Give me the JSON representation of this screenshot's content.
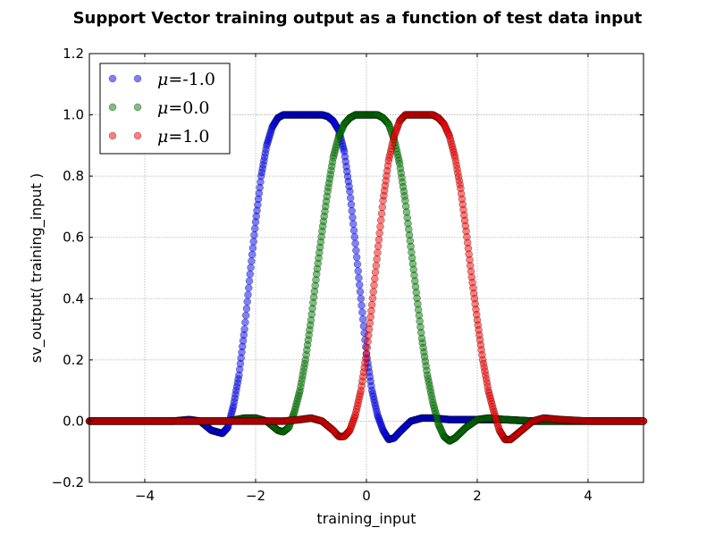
{
  "chart_data": {
    "type": "scatter",
    "title": "Support Vector training output as a function of test data input",
    "xlabel": "training_input",
    "ylabel": "sv_output( training_input )",
    "xlim": [
      -5,
      5
    ],
    "ylim": [
      -0.2,
      1.2
    ],
    "x_ticks": [
      -4,
      -2,
      0,
      2,
      4
    ],
    "x_tick_labels": [
      "−4",
      "−2",
      "0",
      "2",
      "4"
    ],
    "y_ticks": [
      -0.2,
      0.0,
      0.2,
      0.4,
      0.6,
      0.8,
      1.0,
      1.2
    ],
    "y_tick_labels": [
      "−0.2",
      "0.0",
      "0.2",
      "0.4",
      "0.6",
      "0.8",
      "1.0",
      "1.2"
    ],
    "grid": true,
    "legend_position": "top-left",
    "marker": "circle",
    "series": [
      {
        "name": "μ=-1.0",
        "legend_mu": "μ",
        "legend_value": "=-1.0",
        "color": "#0000ff",
        "x": [
          -5.0,
          -4.5,
          -4.0,
          -3.5,
          -3.2,
          -3.0,
          -2.8,
          -2.6,
          -2.5,
          -2.4,
          -2.3,
          -2.2,
          -2.1,
          -2.0,
          -1.9,
          -1.8,
          -1.7,
          -1.6,
          -1.5,
          -1.4,
          -1.3,
          -1.2,
          -1.0,
          -0.8,
          -0.7,
          -0.6,
          -0.5,
          -0.4,
          -0.3,
          -0.2,
          -0.1,
          0.0,
          0.1,
          0.2,
          0.3,
          0.4,
          0.5,
          0.6,
          0.8,
          1.0,
          1.2,
          1.5,
          2.0,
          2.5,
          3.0,
          3.5,
          4.0,
          4.5,
          5.0
        ],
        "y": [
          0.0,
          0.0,
          0.0,
          0.0,
          0.005,
          0.0,
          -0.03,
          -0.04,
          -0.02,
          0.05,
          0.15,
          0.3,
          0.48,
          0.65,
          0.8,
          0.9,
          0.96,
          0.99,
          1.0,
          1.0,
          1.0,
          1.0,
          1.0,
          1.0,
          0.995,
          0.98,
          0.95,
          0.88,
          0.75,
          0.58,
          0.4,
          0.22,
          0.1,
          0.02,
          -0.03,
          -0.06,
          -0.055,
          -0.035,
          0.0,
          0.01,
          0.01,
          0.005,
          0.005,
          0.005,
          0.0,
          0.0,
          0.0,
          0.0,
          0.0
        ]
      },
      {
        "name": "μ=0.0",
        "legend_mu": "μ",
        "legend_value": "=0.0",
        "color": "#008000",
        "x": [
          -5.0,
          -4.0,
          -3.0,
          -2.5,
          -2.2,
          -2.0,
          -1.8,
          -1.6,
          -1.5,
          -1.4,
          -1.3,
          -1.2,
          -1.1,
          -1.0,
          -0.9,
          -0.8,
          -0.7,
          -0.6,
          -0.5,
          -0.4,
          -0.3,
          -0.2,
          0.0,
          0.2,
          0.3,
          0.4,
          0.5,
          0.6,
          0.7,
          0.8,
          0.9,
          1.0,
          1.1,
          1.2,
          1.3,
          1.4,
          1.5,
          1.6,
          1.8,
          2.0,
          2.2,
          2.5,
          3.0,
          4.0,
          5.0
        ],
        "y": [
          0.0,
          0.0,
          0.0,
          0.0,
          0.01,
          0.01,
          0.0,
          -0.03,
          -0.035,
          -0.02,
          0.03,
          0.1,
          0.2,
          0.33,
          0.48,
          0.62,
          0.75,
          0.86,
          0.93,
          0.97,
          0.99,
          1.0,
          1.0,
          1.0,
          0.99,
          0.97,
          0.92,
          0.84,
          0.72,
          0.57,
          0.42,
          0.27,
          0.15,
          0.06,
          -0.01,
          -0.05,
          -0.065,
          -0.055,
          -0.02,
          0.005,
          0.01,
          0.005,
          0.0,
          0.0,
          0.0
        ]
      },
      {
        "name": "μ=1.0",
        "legend_mu": "μ",
        "legend_value": "=1.0",
        "color": "#ff0000",
        "x": [
          -5.0,
          -4.0,
          -3.0,
          -2.0,
          -1.5,
          -1.2,
          -1.0,
          -0.8,
          -0.6,
          -0.5,
          -0.4,
          -0.3,
          -0.2,
          -0.1,
          0.0,
          0.1,
          0.2,
          0.3,
          0.4,
          0.5,
          0.6,
          0.7,
          0.8,
          0.9,
          1.0,
          1.2,
          1.3,
          1.4,
          1.5,
          1.6,
          1.7,
          1.8,
          1.9,
          2.0,
          2.1,
          2.2,
          2.3,
          2.4,
          2.5,
          2.6,
          2.8,
          3.0,
          3.2,
          3.5,
          4.0,
          5.0
        ],
        "y": [
          0.0,
          0.0,
          0.0,
          0.0,
          0.0,
          0.005,
          0.01,
          0.0,
          -0.03,
          -0.05,
          -0.05,
          -0.03,
          0.02,
          0.1,
          0.22,
          0.38,
          0.55,
          0.72,
          0.85,
          0.93,
          0.98,
          1.0,
          1.0,
          1.0,
          1.0,
          1.0,
          0.99,
          0.97,
          0.93,
          0.86,
          0.76,
          0.62,
          0.47,
          0.33,
          0.2,
          0.1,
          0.03,
          -0.03,
          -0.06,
          -0.06,
          -0.03,
          0.0,
          0.01,
          0.005,
          0.0,
          0.0
        ]
      }
    ]
  }
}
